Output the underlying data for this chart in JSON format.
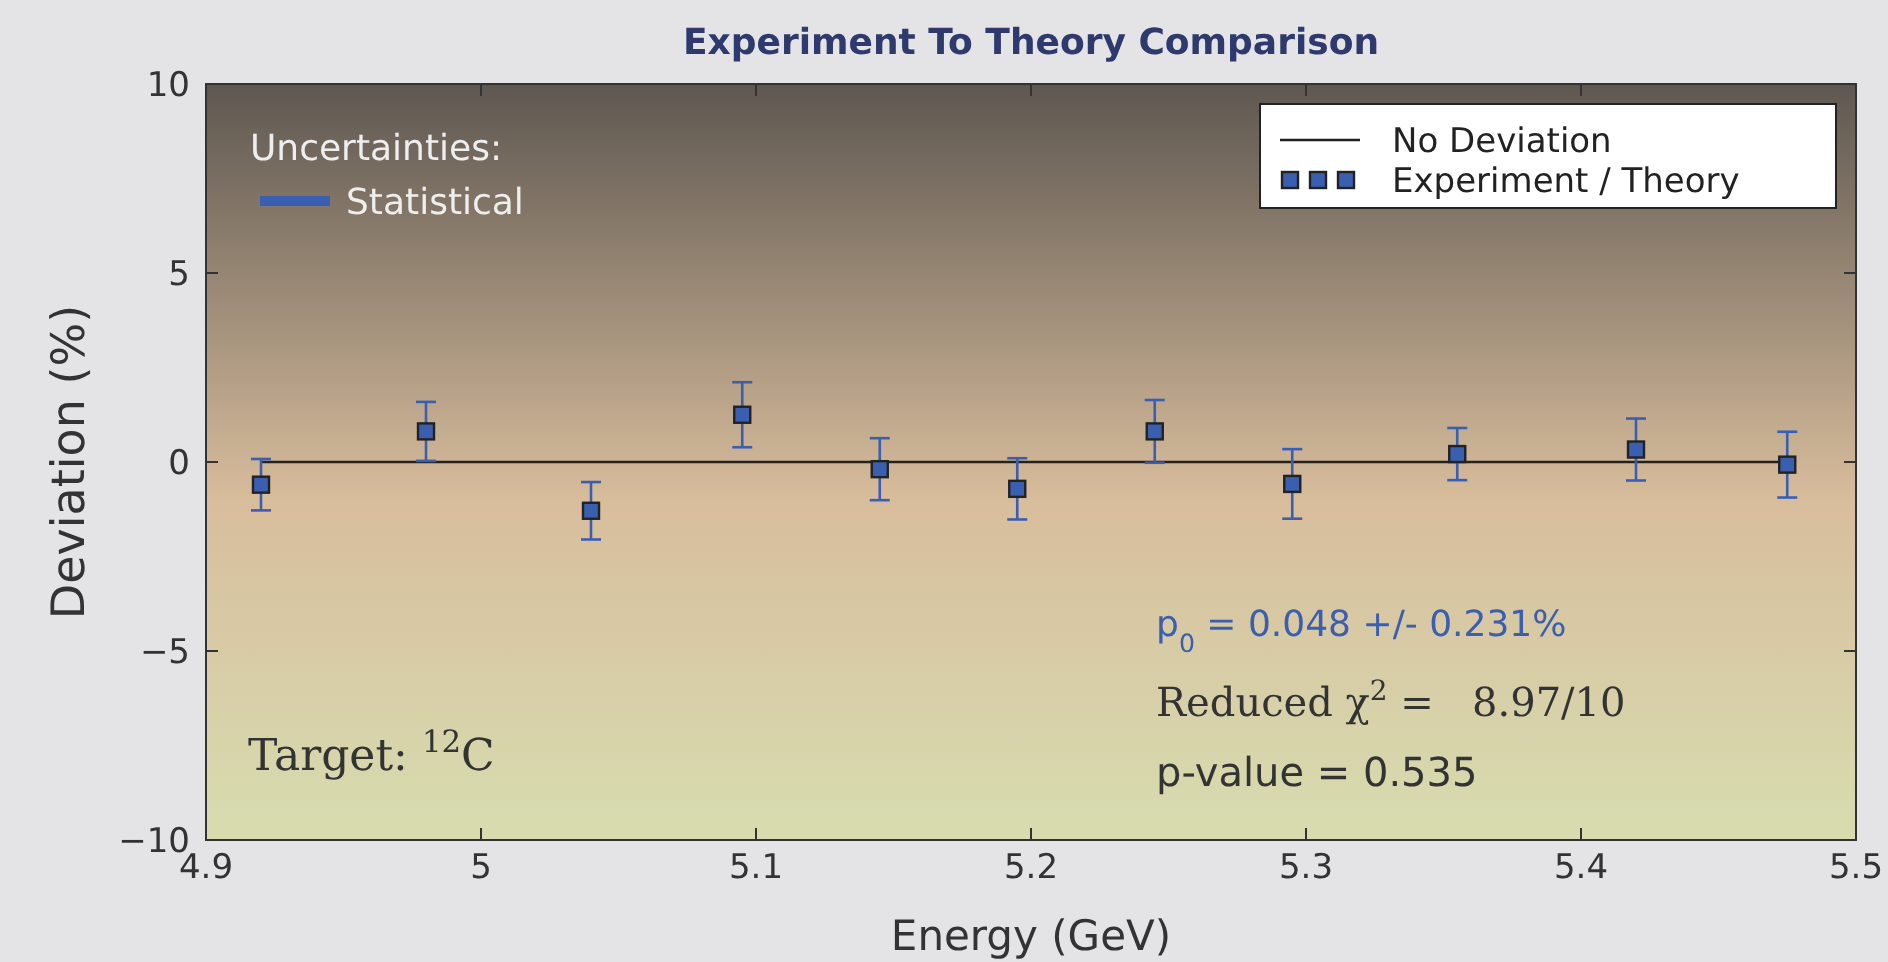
{
  "chart_data": {
    "type": "scatter",
    "title": "Experiment To Theory Comparison",
    "xlabel": "Energy (GeV)",
    "ylabel": "Deviation (%)",
    "xlim": [
      4.9,
      5.5
    ],
    "xticks": [
      4.9,
      5.0,
      5.1,
      5.2,
      5.3,
      5.4,
      5.5
    ],
    "ylim": [
      -10,
      10
    ],
    "yticks": [
      {
        "value": -10,
        "label": "−10"
      },
      {
        "value": -5,
        "label": "−5"
      },
      0,
      5,
      10
    ],
    "grid": false,
    "legend": "top right",
    "series": [
      {
        "name": "No Deviation",
        "type": "line",
        "color": "#222222",
        "line_style": "solid",
        "marker": "none",
        "x": [
          4.92,
          5.475
        ],
        "values": [
          0,
          0
        ]
      },
      {
        "name": "Experiment / Theory",
        "marker": "square",
        "color": "#3a5fb0",
        "x": [
          4.92,
          4.98,
          5.04,
          5.095,
          5.145,
          5.195,
          5.245,
          5.295,
          5.355,
          5.42,
          5.475
        ],
        "values": [
          -0.6,
          0.81,
          -1.29,
          1.25,
          -0.19,
          -0.71,
          0.81,
          -0.58,
          0.21,
          0.33,
          -0.07
        ],
        "errors": [
          0.68,
          0.78,
          0.76,
          0.86,
          0.82,
          0.81,
          0.83,
          0.92,
          0.69,
          0.82,
          0.87
        ]
      }
    ],
    "annotations": [
      "Uncertainties:",
      "Statistical",
      "p$_{0}$ = 0.048 +/- 0.231%",
      "Reduced χ$^{2}$ =   8.97/10",
      "p-value = 0.535",
      "Target: $^{12}$C"
    ]
  }
}
